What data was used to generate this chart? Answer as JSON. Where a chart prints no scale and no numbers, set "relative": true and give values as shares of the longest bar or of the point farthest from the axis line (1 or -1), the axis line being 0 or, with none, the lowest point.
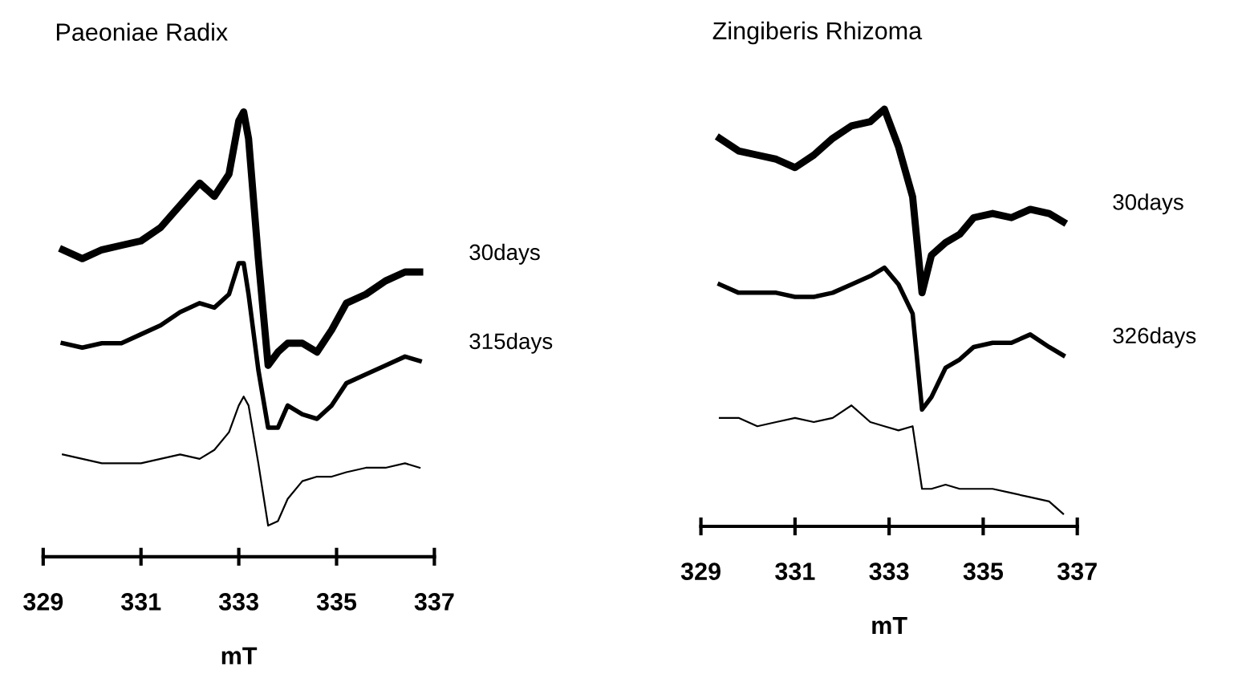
{
  "chart_data": [
    {
      "type": "line",
      "title": "Paeoniae Radix",
      "xlabel": "mT",
      "relative": true,
      "tick_labels": "x",
      "grid": false,
      "legend": false,
      "x": [
        329.4,
        329.8,
        330.2,
        330.6,
        331.0,
        331.4,
        331.8,
        332.2,
        332.5,
        332.8,
        333.0,
        333.1,
        333.2,
        333.4,
        333.6,
        333.8,
        334.0,
        334.3,
        334.6,
        334.9,
        335.2,
        335.6,
        336.0,
        336.4,
        336.7
      ],
      "xlim": [
        329,
        337
      ],
      "xticks": [
        329,
        331,
        333,
        335,
        337
      ],
      "series": [
        {
          "name": "30days",
          "color": "#000000",
          "values": [
            0.69,
            0.67,
            0.69,
            0.7,
            0.71,
            0.74,
            0.79,
            0.84,
            0.81,
            0.86,
            0.98,
            1.0,
            0.94,
            0.67,
            0.43,
            0.46,
            0.48,
            0.48,
            0.46,
            0.51,
            0.57,
            0.59,
            0.62,
            0.64,
            0.64
          ]
        },
        {
          "name": "315days",
          "color": "#000000",
          "values": [
            0.48,
            0.47,
            0.48,
            0.48,
            0.5,
            0.52,
            0.55,
            0.57,
            0.56,
            0.59,
            0.66,
            0.66,
            0.59,
            0.42,
            0.29,
            0.29,
            0.34,
            0.32,
            0.31,
            0.34,
            0.39,
            0.41,
            0.43,
            0.45,
            0.44
          ]
        },
        {
          "color": "#000000",
          "values": [
            0.23,
            0.22,
            0.21,
            0.21,
            0.21,
            0.22,
            0.23,
            0.22,
            0.24,
            0.28,
            0.34,
            0.36,
            0.34,
            0.21,
            0.07,
            0.08,
            0.13,
            0.17,
            0.18,
            0.18,
            0.19,
            0.2,
            0.2,
            0.21,
            0.2
          ]
        }
      ]
    },
    {
      "type": "line",
      "title": "Zingiberis Rhizoma",
      "xlabel": "mT",
      "relative": true,
      "tick_labels": "x",
      "grid": false,
      "legend": false,
      "x": [
        329.4,
        329.8,
        330.2,
        330.6,
        331.0,
        331.4,
        331.8,
        332.2,
        332.6,
        332.9,
        333.2,
        333.5,
        333.7,
        333.9,
        334.2,
        334.5,
        334.8,
        335.2,
        335.6,
        336.0,
        336.4,
        336.7
      ],
      "xlim": [
        329,
        337
      ],
      "xticks": [
        329,
        331,
        333,
        335,
        337
      ],
      "series": [
        {
          "name": "30days",
          "color": "#000000",
          "values": [
            0.93,
            0.9,
            0.89,
            0.88,
            0.86,
            0.89,
            0.93,
            0.96,
            0.97,
            1.0,
            0.91,
            0.79,
            0.56,
            0.65,
            0.68,
            0.7,
            0.74,
            0.75,
            0.74,
            0.76,
            0.75,
            0.73
          ]
        },
        {
          "name": "326days",
          "color": "#000000",
          "values": [
            0.58,
            0.56,
            0.56,
            0.56,
            0.55,
            0.55,
            0.56,
            0.58,
            0.6,
            0.62,
            0.58,
            0.51,
            0.28,
            0.31,
            0.38,
            0.4,
            0.43,
            0.44,
            0.44,
            0.46,
            0.43,
            0.41
          ]
        },
        {
          "color": "#000000",
          "values": [
            0.26,
            0.26,
            0.24,
            0.25,
            0.26,
            0.25,
            0.26,
            0.29,
            0.25,
            0.24,
            0.23,
            0.24,
            0.09,
            0.09,
            0.1,
            0.09,
            0.09,
            0.09,
            0.08,
            0.07,
            0.06,
            0.03
          ]
        }
      ]
    }
  ]
}
